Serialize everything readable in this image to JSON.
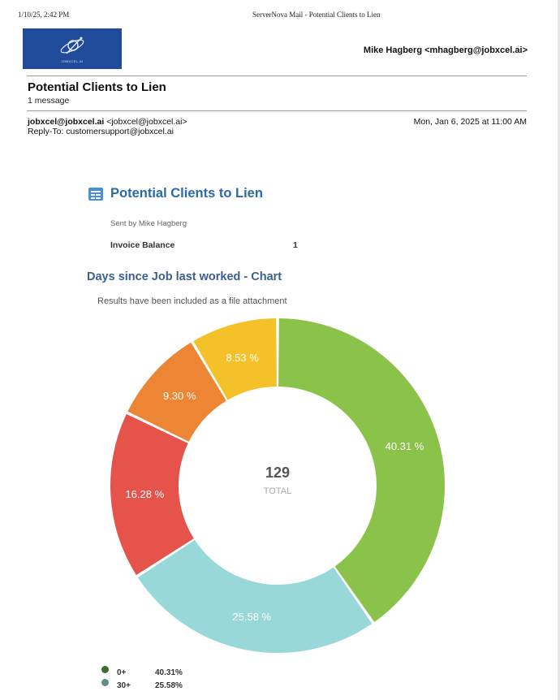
{
  "print_header": {
    "datetime": "1/10/25, 2:42 PM",
    "title": "ServerNova Mail - Potential Clients to Lien"
  },
  "logo": {
    "text": "JOBXCEL.AI",
    "color": "#1f4b9a"
  },
  "account": {
    "user": "Mike Hagberg <mhagberg@jobxcel.ai>"
  },
  "message": {
    "subject": "Potential Clients to Lien",
    "count": "1 message",
    "from_name": "jobxcel@jobxcel.ai",
    "from_addr": "<jobxcel@jobxcel.ai>",
    "reply_to": "Reply-To: customersupport@jobxcel.ai",
    "date": "Mon, Jan 6, 2025 at 11:00 AM"
  },
  "report": {
    "icon": "table-icon",
    "title": "Potential Clients to Lien",
    "sent_by": "Sent by Mike Hagberg",
    "invoice_label": "Invoice Balance",
    "invoice_value": "1",
    "chart_title": "Days since Job last worked - Chart",
    "chart_note": "Results have been included as a file attachment",
    "center_value": "129",
    "center_label": "TOTAL"
  },
  "chart_data": {
    "type": "pie",
    "total": 129,
    "slices": [
      {
        "label": "0+",
        "value": 40.31,
        "display": "40.31 %",
        "legend": "40.31%",
        "color": "#8bc34a",
        "legend_color": "#3f6b2a"
      },
      {
        "label": "30+",
        "value": 25.58,
        "display": "25.58 %",
        "legend": "25.58%",
        "color": "#98d8d8",
        "legend_color": "#5e8e86"
      },
      {
        "label": "",
        "value": 16.28,
        "display": "16.28 %",
        "color": "#e5534b"
      },
      {
        "label": "",
        "value": 9.3,
        "display": "9.30 %",
        "color": "#ec8635"
      },
      {
        "label": "",
        "value": 8.53,
        "display": "8.53 %",
        "color": "#f4c228"
      }
    ]
  }
}
